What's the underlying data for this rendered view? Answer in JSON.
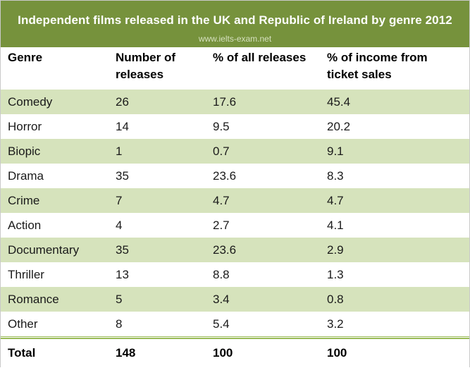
{
  "chart_data": {
    "type": "table",
    "title": "Independent films released in the UK and Republic of Ireland by genre 2012",
    "watermark": "www.ielts-exam.net",
    "columns": [
      "Genre",
      "Number of releases",
      "% of all releases",
      "% of income from ticket sales"
    ],
    "column_header_lines": [
      [
        "Genre"
      ],
      [
        "Number of",
        "releases"
      ],
      [
        "% of all releases"
      ],
      [
        "% of income from",
        "ticket sales"
      ]
    ],
    "rows": [
      {
        "genre": "Comedy",
        "releases": "26",
        "pct_releases": "17.6",
        "pct_income": "45.4"
      },
      {
        "genre": "Horror",
        "releases": "14",
        "pct_releases": "9.5",
        "pct_income": "20.2"
      },
      {
        "genre": "Biopic",
        "releases": "1",
        "pct_releases": "0.7",
        "pct_income": "9.1"
      },
      {
        "genre": "Drama",
        "releases": "35",
        "pct_releases": "23.6",
        "pct_income": "8.3"
      },
      {
        "genre": "Crime",
        "releases": "7",
        "pct_releases": "4.7",
        "pct_income": "4.7"
      },
      {
        "genre": "Action",
        "releases": "4",
        "pct_releases": "2.7",
        "pct_income": "4.1"
      },
      {
        "genre": "Documentary",
        "releases": "35",
        "pct_releases": "23.6",
        "pct_income": "2.9"
      },
      {
        "genre": "Thriller",
        "releases": "13",
        "pct_releases": "8.8",
        "pct_income": "1.3"
      },
      {
        "genre": "Romance",
        "releases": "5",
        "pct_releases": "3.4",
        "pct_income": "0.8"
      },
      {
        "genre": "Other",
        "releases": "8",
        "pct_releases": "5.4",
        "pct_income": "3.2"
      }
    ],
    "total": {
      "label": "Total",
      "releases": "148",
      "pct_releases": "100",
      "pct_income": "100"
    },
    "colors": {
      "title_background": "#76923c",
      "band_fill": "#d6e3bc",
      "rule": "#9bbb59",
      "title_text": "#ffffff"
    }
  }
}
